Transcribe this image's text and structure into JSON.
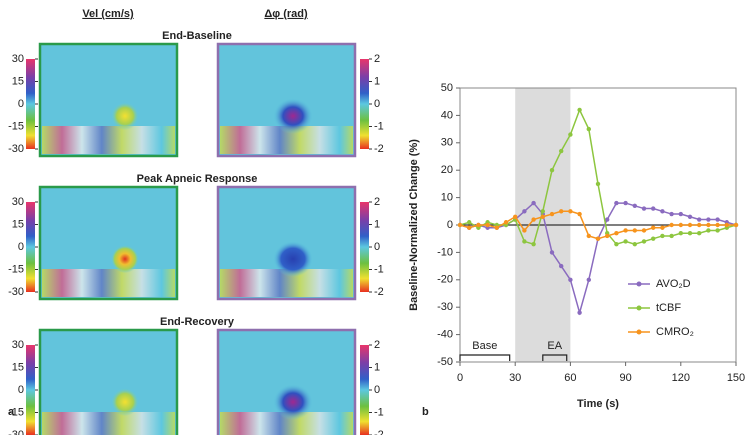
{
  "panel_a": {
    "label": "a",
    "column_titles": [
      "Vel (cm/s)",
      "Δφ (rad)"
    ],
    "row_titles": [
      "End-Baseline",
      "Peak Apneic Response",
      "End-Recovery"
    ],
    "vel_colorbar_ticks": [
      30,
      15,
      0,
      -15,
      -30
    ],
    "phase_colorbar_ticks": [
      2,
      1,
      0,
      -1,
      -2
    ]
  },
  "chart_data": {
    "type": "line",
    "label": "b",
    "xlabel": "Time (s)",
    "ylabel": "Baseline-Normalized Change (%)",
    "x": [
      0,
      5,
      10,
      15,
      20,
      25,
      30,
      35,
      40,
      45,
      50,
      55,
      60,
      65,
      70,
      75,
      80,
      85,
      90,
      95,
      100,
      105,
      110,
      115,
      120,
      125,
      130,
      135,
      140,
      145,
      150
    ],
    "series": [
      {
        "name": "AVO₂D",
        "color": "#8a6bbf",
        "values": [
          0,
          -1,
          0,
          -1,
          -1,
          0,
          2,
          5,
          8,
          4,
          -10,
          -15,
          -20,
          -32,
          -20,
          -5,
          2,
          8,
          8,
          7,
          6,
          6,
          5,
          4,
          4,
          3,
          2,
          2,
          2,
          1,
          0
        ]
      },
      {
        "name": "tCBF",
        "color": "#8dc63f",
        "values": [
          0,
          1,
          -1,
          1,
          0,
          0,
          2,
          -6,
          -7,
          5,
          20,
          27,
          33,
          42,
          35,
          15,
          -3,
          -7,
          -6,
          -7,
          -6,
          -5,
          -4,
          -4,
          -3,
          -3,
          -3,
          -2,
          -2,
          -1,
          0
        ]
      },
      {
        "name": "CMRO₂",
        "color": "#f7941d",
        "values": [
          0,
          -1,
          0,
          0,
          -1,
          1,
          3,
          -2,
          2,
          3,
          4,
          5,
          5,
          4,
          -4,
          -5,
          -4,
          -3,
          -2,
          -2,
          -2,
          -1,
          -1,
          0,
          0,
          0,
          0,
          0,
          0,
          0,
          0
        ]
      }
    ],
    "xlim": [
      0,
      150
    ],
    "xticks": [
      0,
      30,
      60,
      90,
      120,
      150
    ],
    "ylim": [
      -50,
      50
    ],
    "yticks": [
      -50,
      -40,
      -30,
      -20,
      -10,
      0,
      10,
      20,
      30,
      40,
      50
    ],
    "shaded_region": [
      30,
      60
    ],
    "annotations": [
      {
        "text": "Base",
        "x": [
          0,
          27
        ]
      },
      {
        "text": "EA",
        "x": [
          45,
          58
        ]
      }
    ],
    "legend": "lower right"
  }
}
